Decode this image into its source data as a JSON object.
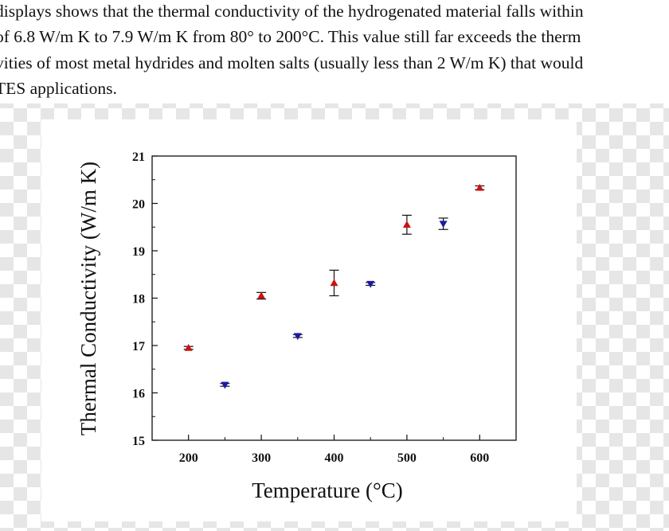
{
  "document": {
    "lines": [
      "displays shows that the thermal conductivity of the hydrogenated material falls within",
      " of 6.8 W/m K to 7.9 W/m K from 80° to 200°C. This value still far exceeds the therm",
      "vities of most metal hydrides and molten salts (usually less than 2 W/m K) that would",
      "TES applications."
    ]
  },
  "chart_data": {
    "type": "scatter",
    "title": "",
    "xlabel": "Temperature (°C)",
    "ylabel": "Thermal Conductivity (W/m K)",
    "xlim": [
      150,
      650
    ],
    "ylim": [
      15,
      21
    ],
    "x_ticks": [
      200,
      300,
      400,
      500,
      600
    ],
    "y_ticks": [
      15,
      16,
      17,
      18,
      19,
      20,
      21
    ],
    "grid": false,
    "legend": false,
    "series": [
      {
        "marker": "triangle-up",
        "color": "#cc1111",
        "points": [
          {
            "x": 200,
            "y": 16.95,
            "err": 0.03
          },
          {
            "x": 300,
            "y": 18.05,
            "err": 0.07
          },
          {
            "x": 400,
            "y": 18.32,
            "err": 0.27
          },
          {
            "x": 500,
            "y": 19.55,
            "err": 0.2
          },
          {
            "x": 600,
            "y": 20.33,
            "err": 0.04
          }
        ]
      },
      {
        "marker": "triangle-down",
        "color": "#1a1aa6",
        "points": [
          {
            "x": 250,
            "y": 16.17,
            "err": 0.03
          },
          {
            "x": 350,
            "y": 17.2,
            "err": 0.03
          },
          {
            "x": 450,
            "y": 18.3,
            "err": 0.03
          },
          {
            "x": 550,
            "y": 19.57,
            "err": 0.12
          }
        ]
      }
    ]
  }
}
